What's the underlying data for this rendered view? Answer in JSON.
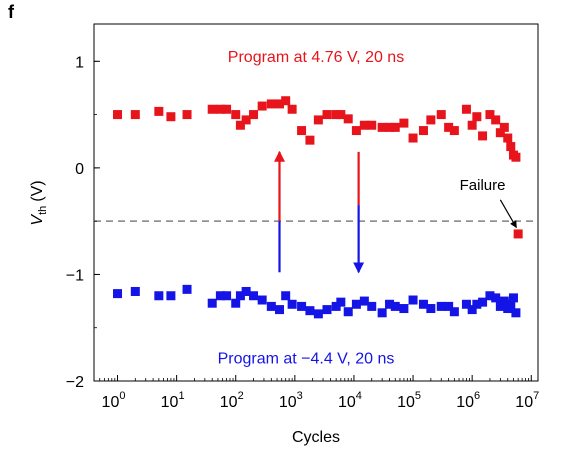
{
  "panel_label": "f",
  "chart_data": {
    "type": "scatter",
    "xlabel": "Cycles",
    "ylabel_main": "V",
    "ylabel_sub": "th",
    "ylabel_unit": "(V)",
    "xscale": "log",
    "xlim": [
      0.4,
      13000000
    ],
    "ylim": [
      -2,
      1.35
    ],
    "xticks": [
      {
        "base": "10",
        "exp": "0",
        "value": 1
      },
      {
        "base": "10",
        "exp": "1",
        "value": 10
      },
      {
        "base": "10",
        "exp": "2",
        "value": 100
      },
      {
        "base": "10",
        "exp": "3",
        "value": 1000
      },
      {
        "base": "10",
        "exp": "4",
        "value": 10000
      },
      {
        "base": "10",
        "exp": "5",
        "value": 100000
      },
      {
        "base": "10",
        "exp": "6",
        "value": 1000000
      },
      {
        "base": "10",
        "exp": "7",
        "value": 10000000
      }
    ],
    "yticks": [
      {
        "label": "1",
        "value": 1
      },
      {
        "label": "0",
        "value": 0
      },
      {
        "label": "−1",
        "value": -1
      },
      {
        "label": "−2",
        "value": -2
      }
    ],
    "threshold_y": -0.5,
    "grid": false,
    "series": [
      {
        "label": "Program at 4.76 V, 20 ns",
        "color": "#e8141b",
        "points": [
          [
            1,
            0.5
          ],
          [
            2,
            0.5
          ],
          [
            5,
            0.53
          ],
          [
            8,
            0.48
          ],
          [
            15,
            0.5
          ],
          [
            40,
            0.55
          ],
          [
            55,
            0.55
          ],
          [
            70,
            0.55
          ],
          [
            100,
            0.5
          ],
          [
            120,
            0.4
          ],
          [
            150,
            0.45
          ],
          [
            200,
            0.5
          ],
          [
            280,
            0.58
          ],
          [
            400,
            0.6
          ],
          [
            550,
            0.6
          ],
          [
            700,
            0.63
          ],
          [
            900,
            0.55
          ],
          [
            1300,
            0.35
          ],
          [
            1800,
            0.26
          ],
          [
            2500,
            0.45
          ],
          [
            3500,
            0.5
          ],
          [
            5000,
            0.5
          ],
          [
            6000,
            0.5
          ],
          [
            8000,
            0.46
          ],
          [
            11000,
            0.35
          ],
          [
            15000,
            0.4
          ],
          [
            20000,
            0.4
          ],
          [
            30000,
            0.38
          ],
          [
            40000,
            0.38
          ],
          [
            50000,
            0.38
          ],
          [
            70000,
            0.42
          ],
          [
            100000,
            0.28
          ],
          [
            150000,
            0.35
          ],
          [
            200000,
            0.45
          ],
          [
            300000,
            0.5
          ],
          [
            400000,
            0.38
          ],
          [
            500000,
            0.35
          ],
          [
            800000,
            0.55
          ],
          [
            1000000,
            0.4
          ],
          [
            1200000,
            0.48
          ],
          [
            1500000,
            0.3
          ],
          [
            2000000,
            0.5
          ],
          [
            2500000,
            0.45
          ],
          [
            3000000,
            0.33
          ],
          [
            3500000,
            0.38
          ],
          [
            4000000,
            0.28
          ],
          [
            4500000,
            0.2
          ],
          [
            5000000,
            0.12
          ],
          [
            5500000,
            0.1
          ],
          [
            6000000,
            -0.62
          ]
        ]
      },
      {
        "label": "Program at −4.4 V, 20 ns",
        "color": "#1414e6",
        "points": [
          [
            1,
            -1.18
          ],
          [
            2,
            -1.16
          ],
          [
            5,
            -1.2
          ],
          [
            8,
            -1.2
          ],
          [
            15,
            -1.14
          ],
          [
            40,
            -1.27
          ],
          [
            55,
            -1.2
          ],
          [
            70,
            -1.2
          ],
          [
            100,
            -1.27
          ],
          [
            120,
            -1.2
          ],
          [
            150,
            -1.16
          ],
          [
            200,
            -1.2
          ],
          [
            280,
            -1.24
          ],
          [
            400,
            -1.3
          ],
          [
            550,
            -1.33
          ],
          [
            700,
            -1.2
          ],
          [
            900,
            -1.28
          ],
          [
            1300,
            -1.3
          ],
          [
            1800,
            -1.34
          ],
          [
            2500,
            -1.37
          ],
          [
            3500,
            -1.33
          ],
          [
            5000,
            -1.3
          ],
          [
            6000,
            -1.26
          ],
          [
            8000,
            -1.35
          ],
          [
            11000,
            -1.28
          ],
          [
            15000,
            -1.25
          ],
          [
            20000,
            -1.3
          ],
          [
            30000,
            -1.36
          ],
          [
            40000,
            -1.28
          ],
          [
            50000,
            -1.3
          ],
          [
            70000,
            -1.32
          ],
          [
            100000,
            -1.24
          ],
          [
            150000,
            -1.28
          ],
          [
            200000,
            -1.32
          ],
          [
            300000,
            -1.3
          ],
          [
            400000,
            -1.3
          ],
          [
            500000,
            -1.35
          ],
          [
            800000,
            -1.28
          ],
          [
            1000000,
            -1.33
          ],
          [
            1200000,
            -1.28
          ],
          [
            1500000,
            -1.26
          ],
          [
            2000000,
            -1.2
          ],
          [
            2500000,
            -1.22
          ],
          [
            3000000,
            -1.3
          ],
          [
            3500000,
            -1.25
          ],
          [
            4000000,
            -1.32
          ],
          [
            4500000,
            -1.28
          ],
          [
            5000000,
            -1.22
          ],
          [
            5500000,
            -1.36
          ]
        ]
      }
    ],
    "arrows": [
      {
        "x": 550,
        "y_from": -0.98,
        "y_split": -0.5,
        "y_to": 0.15,
        "direction": "up"
      },
      {
        "x": 12000,
        "y_from": 0.15,
        "y_split": -0.35,
        "y_to": -0.98,
        "direction": "down"
      }
    ],
    "annotation": {
      "text": "Failure",
      "text_x": 1500000,
      "text_y": -0.16,
      "arrow_from": [
        3000000,
        -0.3
      ],
      "arrow_to": [
        5600000,
        -0.56
      ]
    },
    "top_label_y": 1.05,
    "bottom_label_y": -1.78
  }
}
